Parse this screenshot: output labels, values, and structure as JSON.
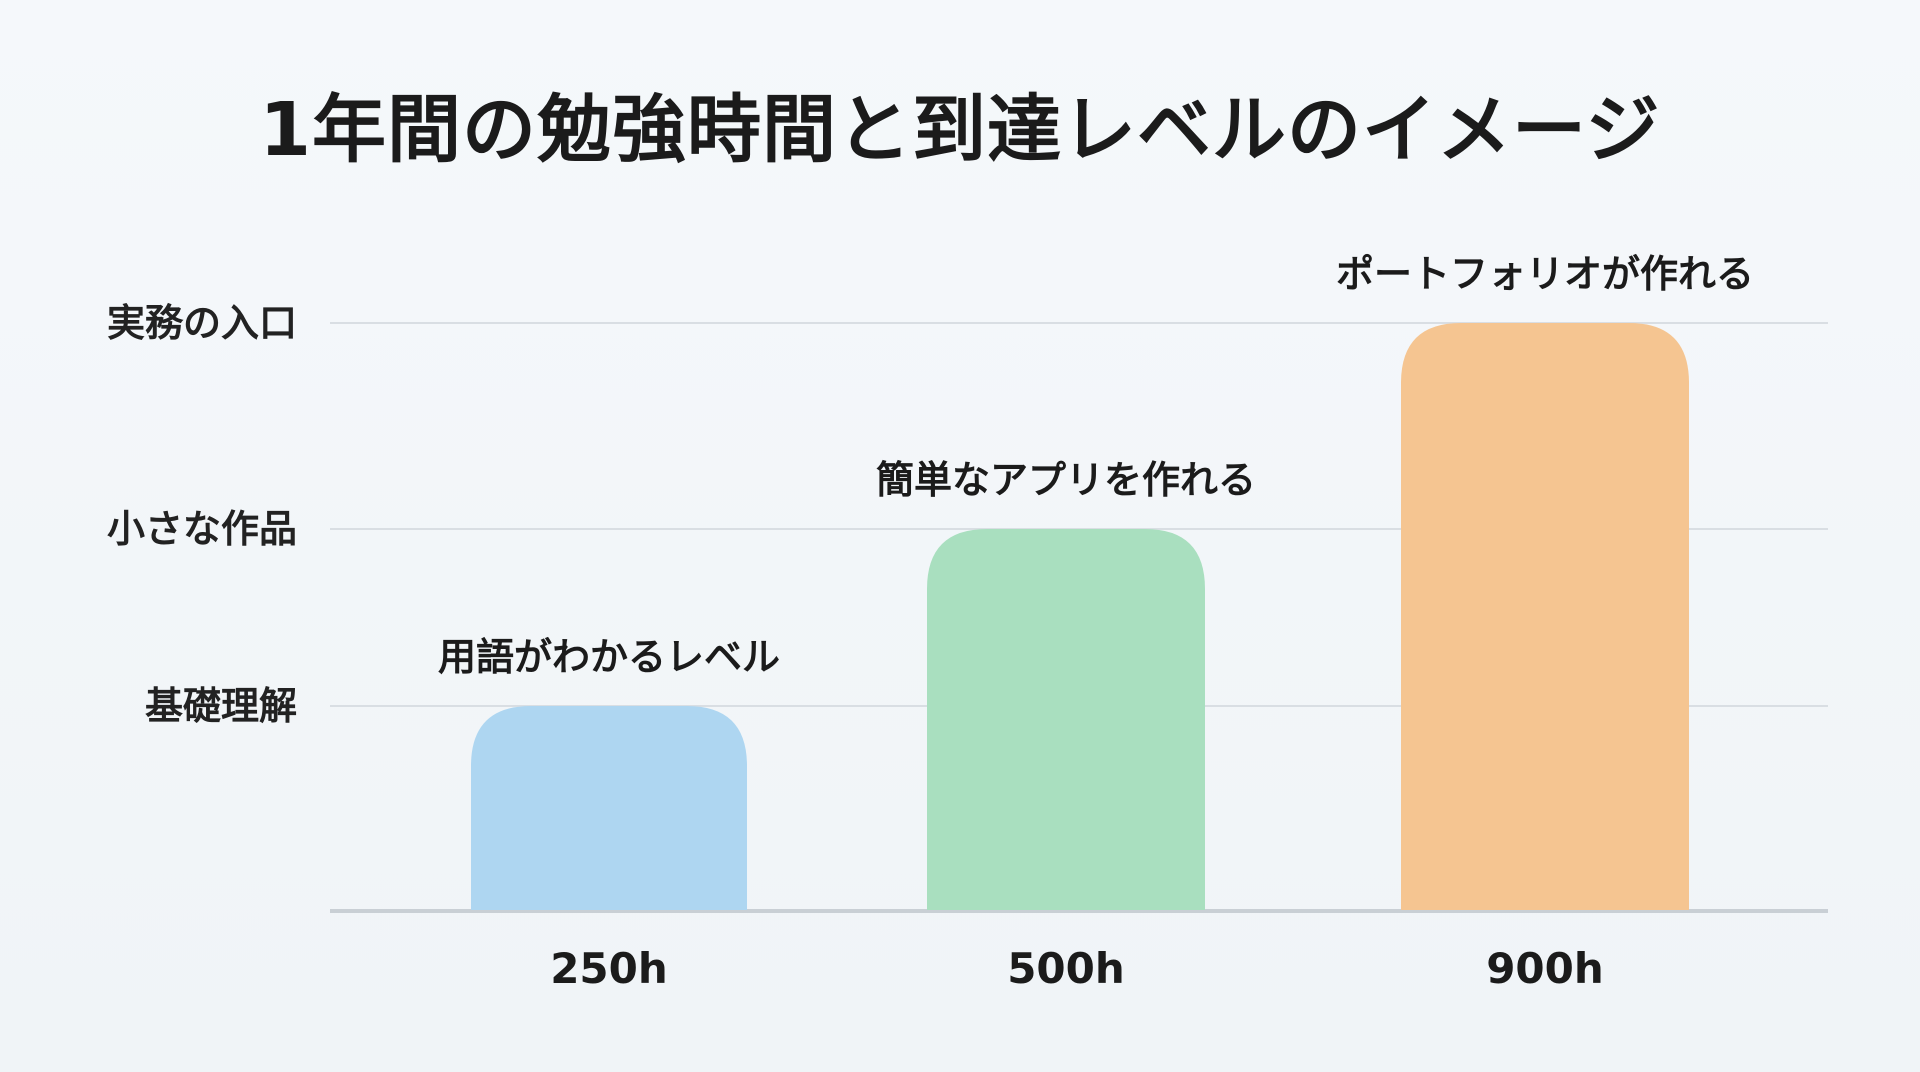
{
  "chart_data": {
    "type": "bar",
    "title": "1年間の勉強時間と到達レベルのイメージ",
    "categories": [
      "250h",
      "500h",
      "900h"
    ],
    "values": [
      1,
      2,
      3
    ],
    "bar_labels": [
      "用語がわかるレベル",
      "簡単なアプリを作れる",
      "ポートフォリオが作れる"
    ],
    "bar_colors": [
      "#aed6f1",
      "#a9dfbf",
      "#f5c591"
    ],
    "y_levels": [
      "基礎理解",
      "小さな作品",
      "実務の入口"
    ],
    "ylim": [
      0,
      3
    ],
    "grid": true,
    "legend": "none"
  }
}
